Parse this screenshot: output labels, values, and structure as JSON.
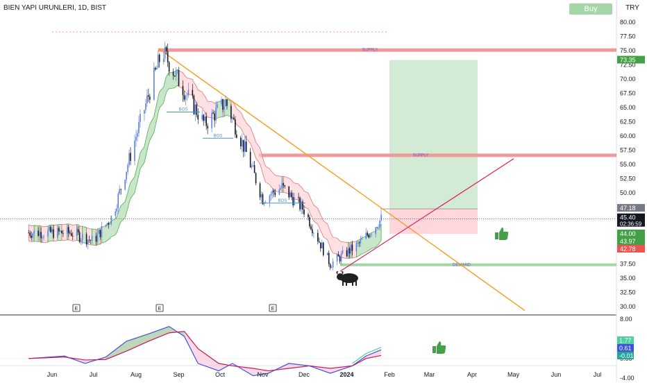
{
  "header": {
    "symbol_line": "BIEN YAPI URUNLERI, 1D, BIST",
    "buy_label": "Buy",
    "currency": "TRY"
  },
  "price_axis": {
    "ticks": [
      "80.00",
      "77.50",
      "75.00",
      "72.50",
      "70.00",
      "67.50",
      "65.00",
      "62.50",
      "60.00",
      "57.50",
      "55.00",
      "52.50",
      "50.00",
      "47.50",
      "45.00",
      "42.50",
      "40.00",
      "37.50",
      "35.00",
      "32.50",
      "30.00"
    ],
    "tick_values": [
      80,
      77.5,
      75,
      72.5,
      70,
      67.5,
      65,
      62.5,
      60,
      57.5,
      55,
      52.5,
      50,
      47.5,
      45,
      42.5,
      40,
      37.5,
      35,
      32.5,
      30
    ],
    "badges": [
      {
        "text": "73.35",
        "value": 73.35,
        "color": "#43a047"
      },
      {
        "text": "47.18",
        "value": 47.18,
        "color": "#787b86"
      },
      {
        "text": "45.40",
        "value": 45.4,
        "color": "#131722",
        "sub": "02:36:59"
      },
      {
        "text": "44.00",
        "value": 44.0,
        "color": "#43a047"
      },
      {
        "text": "43.97",
        "value": 43.97,
        "color": "#43a047"
      },
      {
        "text": "42.78",
        "value": 42.78,
        "color": "#ef5350"
      }
    ]
  },
  "osc_axis": {
    "ticks": [
      "8.00",
      "4.00",
      "0.00",
      "-4.00"
    ],
    "tick_values": [
      8,
      4,
      0,
      -4
    ],
    "badges": [
      {
        "text": "1.77",
        "value": 1.77,
        "color": "#4dd0a1"
      },
      {
        "text": "0.61",
        "value": 0.61,
        "color": "#3f51e0"
      },
      {
        "text": "-0.01",
        "value": -0.01,
        "color": "#26a69a"
      }
    ]
  },
  "time_axis": {
    "labels": [
      "Jun",
      "Jul",
      "Aug",
      "Sep",
      "Oct",
      "Nov",
      "Dec",
      "2024",
      "Feb",
      "Mar",
      "Apr",
      "May",
      "Jun",
      "Jul"
    ],
    "bold_label": "2024"
  },
  "zones": [
    {
      "label": "SUPPLY",
      "top": 75.4,
      "bottom": 74.8,
      "color": "#ef9a9a"
    },
    {
      "label": "SUPPLY",
      "top": 56.9,
      "bottom": 56.3,
      "color": "#ef9a9a"
    },
    {
      "label": "DEMAND",
      "top": 37.6,
      "bottom": 37.1,
      "color": "#a5d6a7"
    }
  ],
  "structure_labels": [
    "BOS",
    "BOS",
    "BOS"
  ],
  "earnings_markers": [
    "E",
    "E",
    "E"
  ],
  "position_tool": {
    "target": 73.35,
    "entry": 47.18,
    "stop": 42.78
  },
  "chart_data": {
    "type": "candlestick",
    "title": "BIEN YAPI URUNLERI, 1D, BIST",
    "ylim": [
      28.5,
      82.5
    ],
    "x_range": [
      "May 2023",
      "Jul 2024"
    ],
    "approx_close_path": [
      {
        "x": "2023-05-15",
        "y": 43.0
      },
      {
        "x": "2023-06-15",
        "y": 43.0
      },
      {
        "x": "2023-07-01",
        "y": 41.5
      },
      {
        "x": "2023-07-15",
        "y": 46.0
      },
      {
        "x": "2023-08-01",
        "y": 60.0
      },
      {
        "x": "2023-08-20",
        "y": 75.0
      },
      {
        "x": "2023-09-05",
        "y": 68.0
      },
      {
        "x": "2023-09-20",
        "y": 62.0
      },
      {
        "x": "2023-10-05",
        "y": 66.0
      },
      {
        "x": "2023-10-20",
        "y": 57.0
      },
      {
        "x": "2023-11-01",
        "y": 49.0
      },
      {
        "x": "2023-11-15",
        "y": 51.0
      },
      {
        "x": "2023-12-01",
        "y": 47.0
      },
      {
        "x": "2023-12-20",
        "y": 37.5
      },
      {
        "x": "2024-01-10",
        "y": 41.0
      },
      {
        "x": "2024-01-26",
        "y": 45.4
      }
    ],
    "last_price": 45.4,
    "oscillator": {
      "series": [
        {
          "name": "fast",
          "last": 1.77
        },
        {
          "name": "slow",
          "last": 0.61
        },
        {
          "name": "hist",
          "last": -0.01
        }
      ],
      "ylim": [
        -5,
        9
      ]
    }
  }
}
